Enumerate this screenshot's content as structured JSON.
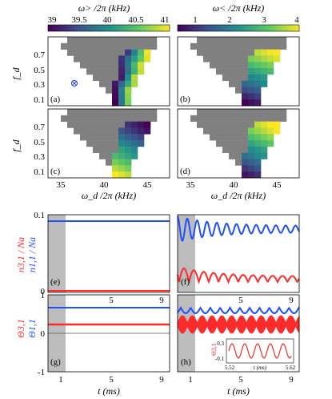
{
  "chart_data": {
    "colorbars": [
      {
        "label": "ω> /2π (kHz)",
        "ticks": [
          "39",
          "39.5",
          "40",
          "40.5",
          "41"
        ],
        "range": [
          38.8,
          41
        ]
      },
      {
        "label": "ω< /2π (kHz)",
        "ticks": [
          "1",
          "2",
          "3",
          "4"
        ],
        "range": [
          0.5,
          4
        ]
      }
    ],
    "maps": {
      "type": "heatmap",
      "xlabel": "ω_d /2π (kHz)",
      "ylabel": "f_d",
      "xticks": [
        "35",
        "40",
        "45"
      ],
      "yticks": [
        "0.1",
        "0.3",
        "0.5",
        "0.7"
      ],
      "xlim": [
        33,
        47
      ],
      "ylim": [
        0,
        0.85
      ],
      "panels": [
        "(a)",
        "(b)",
        "(c)",
        "(d)"
      ],
      "gray_region_color": "#808080",
      "marker": "⊗"
    },
    "populations": {
      "type": "line",
      "ylabel_left": "n3,1 / Na",
      "ylabel_right": "n1,1 / Na",
      "yticks": [
        "0",
        "0.1"
      ],
      "ylim": [
        0,
        0.1
      ],
      "xticks": [
        "1",
        "5",
        "9"
      ],
      "xlim": [
        0,
        9.6
      ],
      "panels": [
        "(e)",
        "(f)"
      ],
      "series": [
        {
          "name": "n1,1 / Na",
          "color": "#1f4fff"
        },
        {
          "name": "n3,1 / Na",
          "color": "#ff2a2a"
        }
      ]
    },
    "phases": {
      "type": "line",
      "ylabel_left": "Θ3,1",
      "ylabel_right": "Θ1,1",
      "yticks": [
        "-1",
        "0",
        "1"
      ],
      "ylim": [
        -1,
        1
      ],
      "xticks": [
        "1",
        "5",
        "9"
      ],
      "xlim": [
        0,
        9.6
      ],
      "xlabel": "t (ms)",
      "panels": [
        "(g)",
        "(h)"
      ],
      "inset": {
        "ylabel": "Θ3,1",
        "yticks": [
          "0.3",
          "-0.1"
        ],
        "xticks": [
          "5.52",
          "5.62"
        ],
        "xlabel": "t (ms)"
      }
    }
  }
}
